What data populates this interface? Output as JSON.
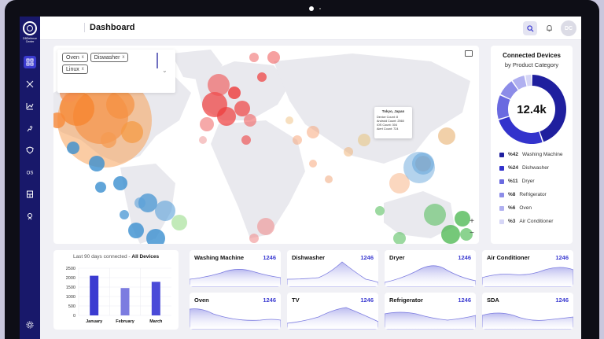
{
  "header": {
    "title": "Dashboard",
    "avatar_initials": "DC"
  },
  "sidebar": {
    "logo_text": "DBDefence Center",
    "items": [
      {
        "name": "sidebar-item-dashboard",
        "icon": "grid-icon",
        "active": true
      },
      {
        "name": "sidebar-item-tools",
        "icon": "tools-icon"
      },
      {
        "name": "sidebar-item-analytics",
        "icon": "trend-icon"
      },
      {
        "name": "sidebar-item-running",
        "icon": "run-icon"
      },
      {
        "name": "sidebar-item-security",
        "icon": "shield-icon"
      },
      {
        "name": "sidebar-item-os",
        "icon": "os-icon",
        "text": "OS"
      },
      {
        "name": "sidebar-item-devices",
        "icon": "device-icon"
      },
      {
        "name": "sidebar-item-location",
        "icon": "location-icon"
      }
    ],
    "bottom_icon": "gear-icon"
  },
  "filters": {
    "chips": [
      {
        "label": "Oven"
      },
      {
        "label": "Diswasher"
      },
      {
        "label": "Linux"
      }
    ],
    "remove_glyph": "x"
  },
  "tooltip": {
    "title": "Tokyo, Japan",
    "lines": [
      "Device Count: 8",
      "Android Count: 2560",
      "iOS Count: 304",
      "Alert Count: 724"
    ]
  },
  "map": {
    "zoom_in": "+",
    "zoom_out": "−"
  },
  "donut": {
    "title": "Connected Devices",
    "subtitle": "by Product Category",
    "center_value": "12.4k",
    "segments": [
      {
        "pct": 42,
        "label": "%42",
        "name": "Washing Machine",
        "color": "#1f1f9e"
      },
      {
        "pct": 24,
        "label": "%24",
        "name": "Dishwasher",
        "color": "#3333cc"
      },
      {
        "pct": 11,
        "label": "%11",
        "name": "Dryer",
        "color": "#6a6ae0"
      },
      {
        "pct": 8,
        "label": "%8",
        "name": "Refrigerator",
        "color": "#8c8ce8"
      },
      {
        "pct": 6,
        "label": "%6",
        "name": "Oven",
        "color": "#b0b0f0"
      },
      {
        "pct": 3,
        "label": "%3",
        "name": "Air Conditioner",
        "color": "#d6d6f6"
      }
    ]
  },
  "bar_chart": {
    "title_prefix": "Last 90 days connected - ",
    "title_bold": "All Devices",
    "chart_data": {
      "type": "bar",
      "title": "Last 90 days connected - All Devices",
      "categories": [
        "January",
        "February",
        "March"
      ],
      "values": [
        2100,
        1450,
        1780
      ],
      "ylim": [
        0,
        2500
      ],
      "yticks": [
        0,
        500,
        1000,
        1500,
        2000,
        2500
      ],
      "colors": [
        "#3b3bd1",
        "#7c7ce0",
        "#4a4ad8"
      ]
    }
  },
  "mini_cards": [
    {
      "label": "Washing Machine",
      "value": "1246"
    },
    {
      "label": "Dishwasher",
      "value": "1246"
    },
    {
      "label": "Dryer",
      "value": "1246"
    },
    {
      "label": "Air Conditioner",
      "value": "1246"
    },
    {
      "label": "Oven",
      "value": "1246"
    },
    {
      "label": "TV",
      "value": "1246"
    },
    {
      "label": "Refrigerator",
      "value": "1246"
    },
    {
      "label": "SDA",
      "value": "1246"
    }
  ]
}
